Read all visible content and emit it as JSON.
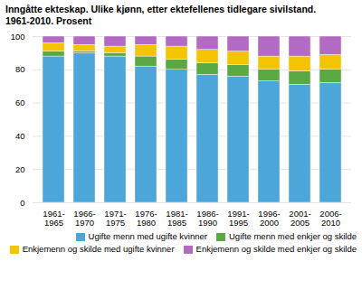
{
  "chart_data": {
    "type": "bar",
    "title": "Inngåtte ekteskap. Ulike kjønn, etter ektefellenes tidlegare sivilstand.",
    "subtitle": "1961-2010. Prosent",
    "categories": [
      "1961-\n1965",
      "1966-\n1970",
      "1971-\n1975",
      "1976-\n1980",
      "1981-\n1985",
      "1986-\n1990",
      "1991-\n1995",
      "1996-\n2000",
      "2001-\n2005",
      "2006-\n2010"
    ],
    "series": [
      {
        "name": "Ugifte menn med ugifte kvinner",
        "color": "#4da6d9",
        "values": [
          88,
          90,
          88,
          82,
          80,
          77,
          76,
          73,
          71,
          72
        ]
      },
      {
        "name": "Ugifte menn med enkjer og skilde",
        "color": "#5aaa44",
        "values": [
          3,
          1,
          2,
          6,
          6,
          7,
          7,
          7,
          8,
          8
        ]
      },
      {
        "name": "Enkjemenn og skilde med ugifte kvinner",
        "color": "#f5c400",
        "values": [
          5,
          4,
          4,
          7,
          8,
          8,
          8,
          8,
          9,
          9
        ]
      },
      {
        "name": "Enkjemenn og skilde med enkjer og skilde",
        "color": "#b36ac2",
        "values": [
          4,
          5,
          6,
          5,
          6,
          8,
          9,
          12,
          12,
          11
        ]
      }
    ],
    "stacked": true,
    "ylim": [
      0,
      100
    ],
    "yticks": [
      0,
      20,
      40,
      60,
      80,
      100
    ],
    "grid": true,
    "legend": "lower right"
  }
}
